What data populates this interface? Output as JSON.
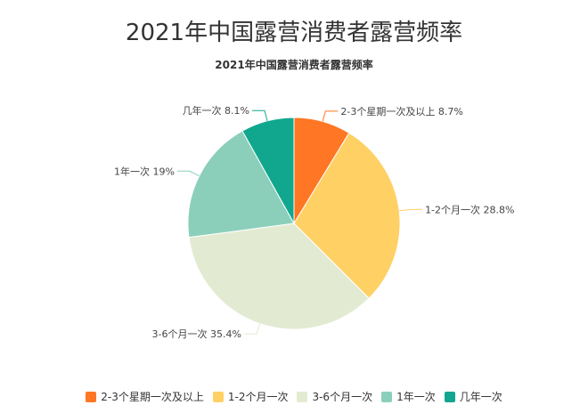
{
  "title": "2021年中国露营消费者露营频率",
  "subtitle": "2021年中国露营消费者露营频率",
  "chart_data": {
    "type": "pie",
    "title": "2021年中国露营消费者露营频率",
    "subtitle": "2021年中国露营消费者露营频率",
    "legend_position": "bottom",
    "slices": [
      {
        "name": "2-3个星期一次及以上",
        "value": 8.7,
        "label": "2-3个星期一次及以上 8.7%",
        "color": "#FF7624"
      },
      {
        "name": "1-2个月一次",
        "value": 28.8,
        "label": "1-2个月一次 28.8%",
        "color": "#FFD064"
      },
      {
        "name": "3-6个月一次",
        "value": 35.4,
        "label": "3-6个月一次 35.4%",
        "color": "#E2EBD1"
      },
      {
        "name": "1年一次",
        "value": 19,
        "label": "1年一次 19%",
        "color": "#8BCFBB"
      },
      {
        "name": "几年一次",
        "value": 8.1,
        "label": "几年一次 8.1%",
        "color": "#11A78E"
      }
    ]
  }
}
